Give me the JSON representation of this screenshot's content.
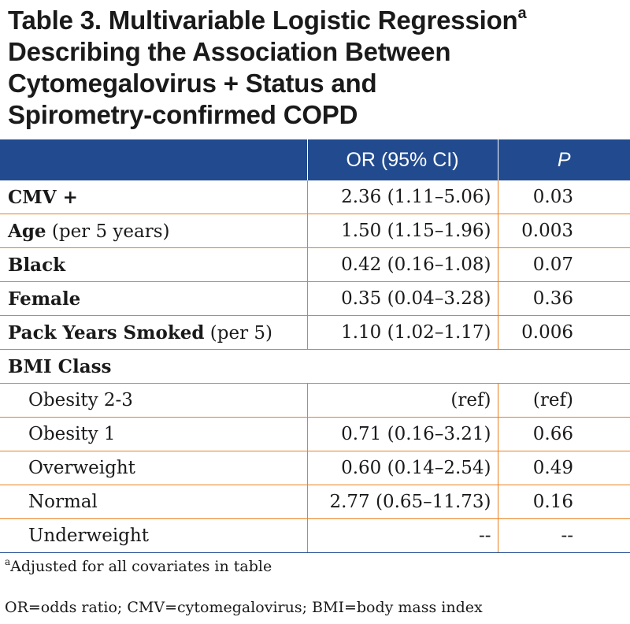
{
  "title": {
    "line1": "Table 3. Multivariable Logistic Regression",
    "line1_sup": "a",
    "line2": "Describing the Association Between",
    "line3": "Cytomegalovirus + Status and",
    "line4": "Spirometry-confirmed COPD"
  },
  "header": {
    "blank": "",
    "or": "OR (95% CI)",
    "p": "P"
  },
  "rows": [
    {
      "bold": "CMV +",
      "plain": "",
      "or": "2.36 (1.11–5.06)",
      "p": "0.03"
    },
    {
      "bold": "Age",
      "plain": " (per 5 years)",
      "or": "1.50 (1.15–1.96)",
      "p": "0.003"
    },
    {
      "bold": "Black",
      "plain": "",
      "or": "0.42 (0.16–1.08)",
      "p": "0.07"
    },
    {
      "bold": "Female",
      "plain": "",
      "or": "0.35 (0.04–3.28)",
      "p": "0.36"
    },
    {
      "bold": "Pack Years Smoked",
      "plain": " (per 5)",
      "or": "1.10 (1.02–1.17)",
      "p": "0.006"
    }
  ],
  "bmi_section": "BMI Class",
  "bmi_rows": [
    {
      "label": "Obesity 2-3",
      "or": "(ref)",
      "p": "(ref)"
    },
    {
      "label": "Obesity 1",
      "or": "0.71 (0.16–3.21)",
      "p": "0.66"
    },
    {
      "label": "Overweight",
      "or": "0.60 (0.14–2.54)",
      "p": "0.49"
    },
    {
      "label": "Normal",
      "or": "2.77 (0.65–11.73)",
      "p": "0.16"
    },
    {
      "label": "Underweight",
      "or": "--",
      "p": "--"
    }
  ],
  "footnote_a": {
    "sup": "a",
    "text": "Adjusted for all covariates in table"
  },
  "abbreviations": "OR=odds ratio; CMV=cytomegalovirus; BMI=body mass index",
  "colors": {
    "header_bg": "#224b8f",
    "row_border": "#e8801f"
  }
}
